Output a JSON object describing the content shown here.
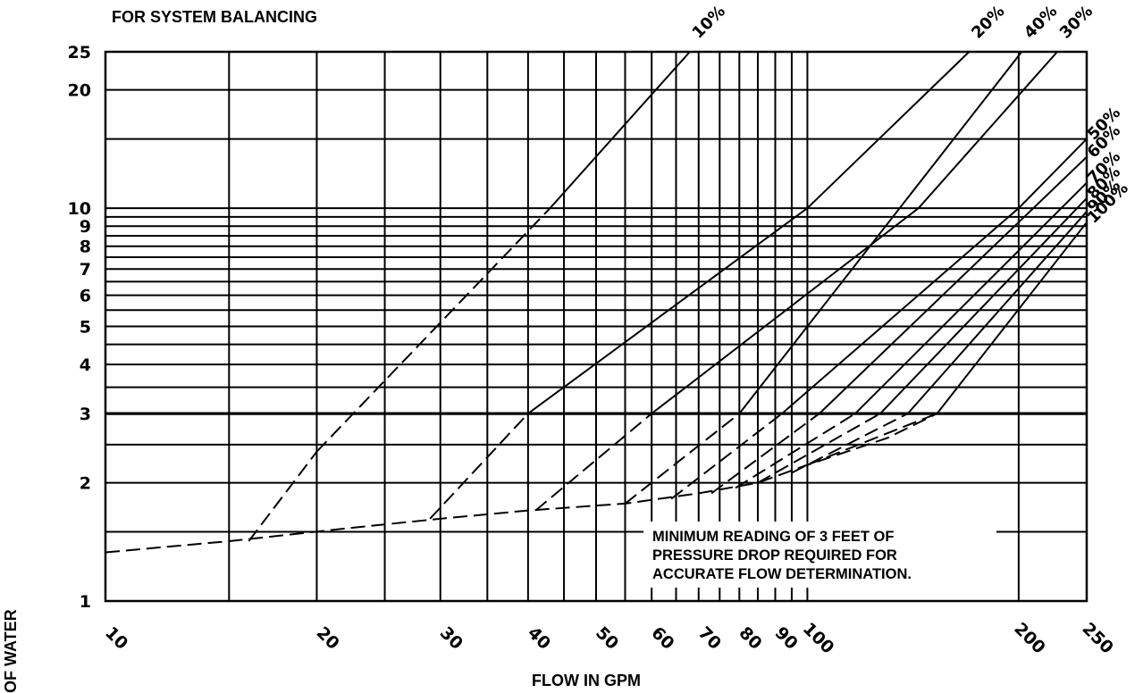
{
  "chart_data": {
    "type": "line",
    "title": "FOR SYSTEM BALANCING",
    "xlabel": "FLOW IN GPM",
    "ylabel": "OF WATER",
    "x_scale": "log",
    "y_scale": "log",
    "xlim": [
      10,
      250
    ],
    "ylim": [
      1,
      25
    ],
    "grid": true,
    "x_ticks": [
      "10",
      "20",
      "30",
      "40",
      "50",
      "60",
      "70",
      "80",
      "90",
      "100",
      "200",
      "250"
    ],
    "y_ticks": [
      "1",
      "2",
      "3",
      "4",
      "5",
      "6",
      "7",
      "8",
      "9",
      "10",
      "20",
      "25"
    ],
    "line_labels": [
      "10%",
      "20%",
      "30%",
      "40%",
      "50%",
      "60%",
      "70%",
      "80%",
      "90%",
      "100%"
    ],
    "series": [
      {
        "name": "10%",
        "points": [
          [
            16,
            1.42
          ],
          [
            20,
            2.4
          ],
          [
            43,
            10
          ],
          [
            68,
            25
          ]
        ]
      },
      {
        "name": "20%",
        "points": [
          [
            29,
            1.62
          ],
          [
            40,
            3.0
          ],
          [
            100,
            10
          ],
          [
            170,
            25
          ]
        ]
      },
      {
        "name": "30%",
        "points": [
          [
            41,
            1.7
          ],
          [
            60,
            3.0
          ],
          [
            144,
            10
          ],
          [
            227,
            25
          ]
        ]
      },
      {
        "name": "40%",
        "points": [
          [
            55,
            1.77
          ],
          [
            80,
            3.0
          ],
          [
            202,
            25
          ]
        ]
      },
      {
        "name": "50%",
        "points": [
          [
            64,
            1.82
          ],
          [
            92,
            3.0
          ],
          [
            200,
            10
          ],
          [
            250,
            15
          ]
        ]
      },
      {
        "name": "60%",
        "points": [
          [
            73,
            1.88
          ],
          [
            104,
            3.0
          ],
          [
            250,
            13.5
          ]
        ]
      },
      {
        "name": "70%",
        "points": [
          [
            79,
            1.94
          ],
          [
            117,
            3.0
          ],
          [
            250,
            11.6
          ]
        ]
      },
      {
        "name": "80%",
        "points": [
          [
            85,
            2.0
          ],
          [
            127,
            3.0
          ],
          [
            250,
            10.6
          ]
        ]
      },
      {
        "name": "90%",
        "points": [
          [
            95,
            2.12
          ],
          [
            139,
            3.0
          ],
          [
            250,
            9.8
          ]
        ]
      },
      {
        "name": "100%",
        "points": [
          [
            100,
            2.22
          ],
          [
            153,
            3.0
          ],
          [
            250,
            9.2
          ]
        ]
      }
    ],
    "minimum_curve": [
      [
        10,
        1.33
      ],
      [
        15,
        1.42
      ],
      [
        22,
        1.53
      ],
      [
        30,
        1.62
      ],
      [
        40,
        1.7
      ],
      [
        55,
        1.77
      ],
      [
        70,
        1.88
      ],
      [
        85,
        2.0
      ],
      [
        100,
        2.22
      ],
      [
        130,
        2.6
      ],
      [
        153,
        3.0
      ]
    ],
    "annotation": [
      "MINIMUM READING OF 3 FEET OF",
      "PRESSURE DROP REQUIRED FOR",
      "ACCURATE FLOW DETERMINATION."
    ]
  }
}
